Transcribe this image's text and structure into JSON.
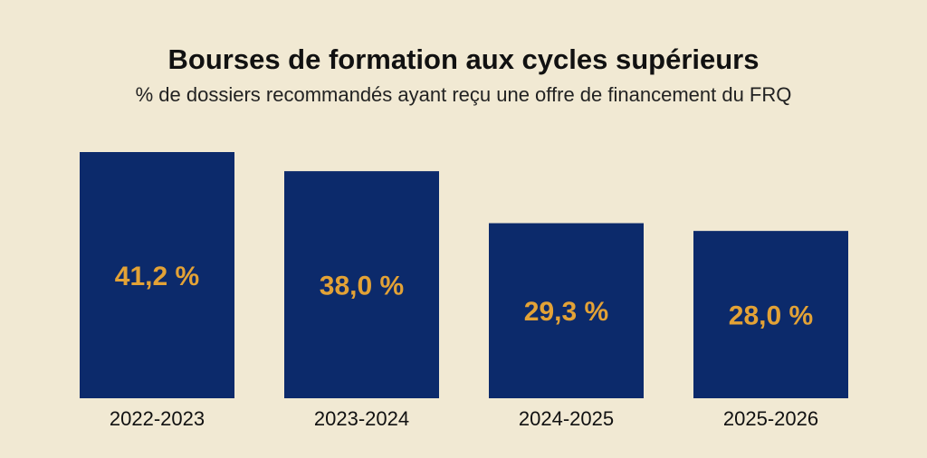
{
  "chart_data": {
    "type": "bar",
    "title": "Bourses de formation aux cycles supérieurs",
    "subtitle": "% de dossiers recommandés ayant reçu une offre de financement du FRQ",
    "categories": [
      "2022-2023",
      "2023-2024",
      "2024-2025",
      "2025-2026"
    ],
    "values": [
      41.2,
      38.0,
      29.3,
      28.0
    ],
    "value_labels": [
      "41,2 %",
      "38,0 %",
      "29,3 %",
      "28,0 %"
    ],
    "color": "#0c2a6b"
  }
}
